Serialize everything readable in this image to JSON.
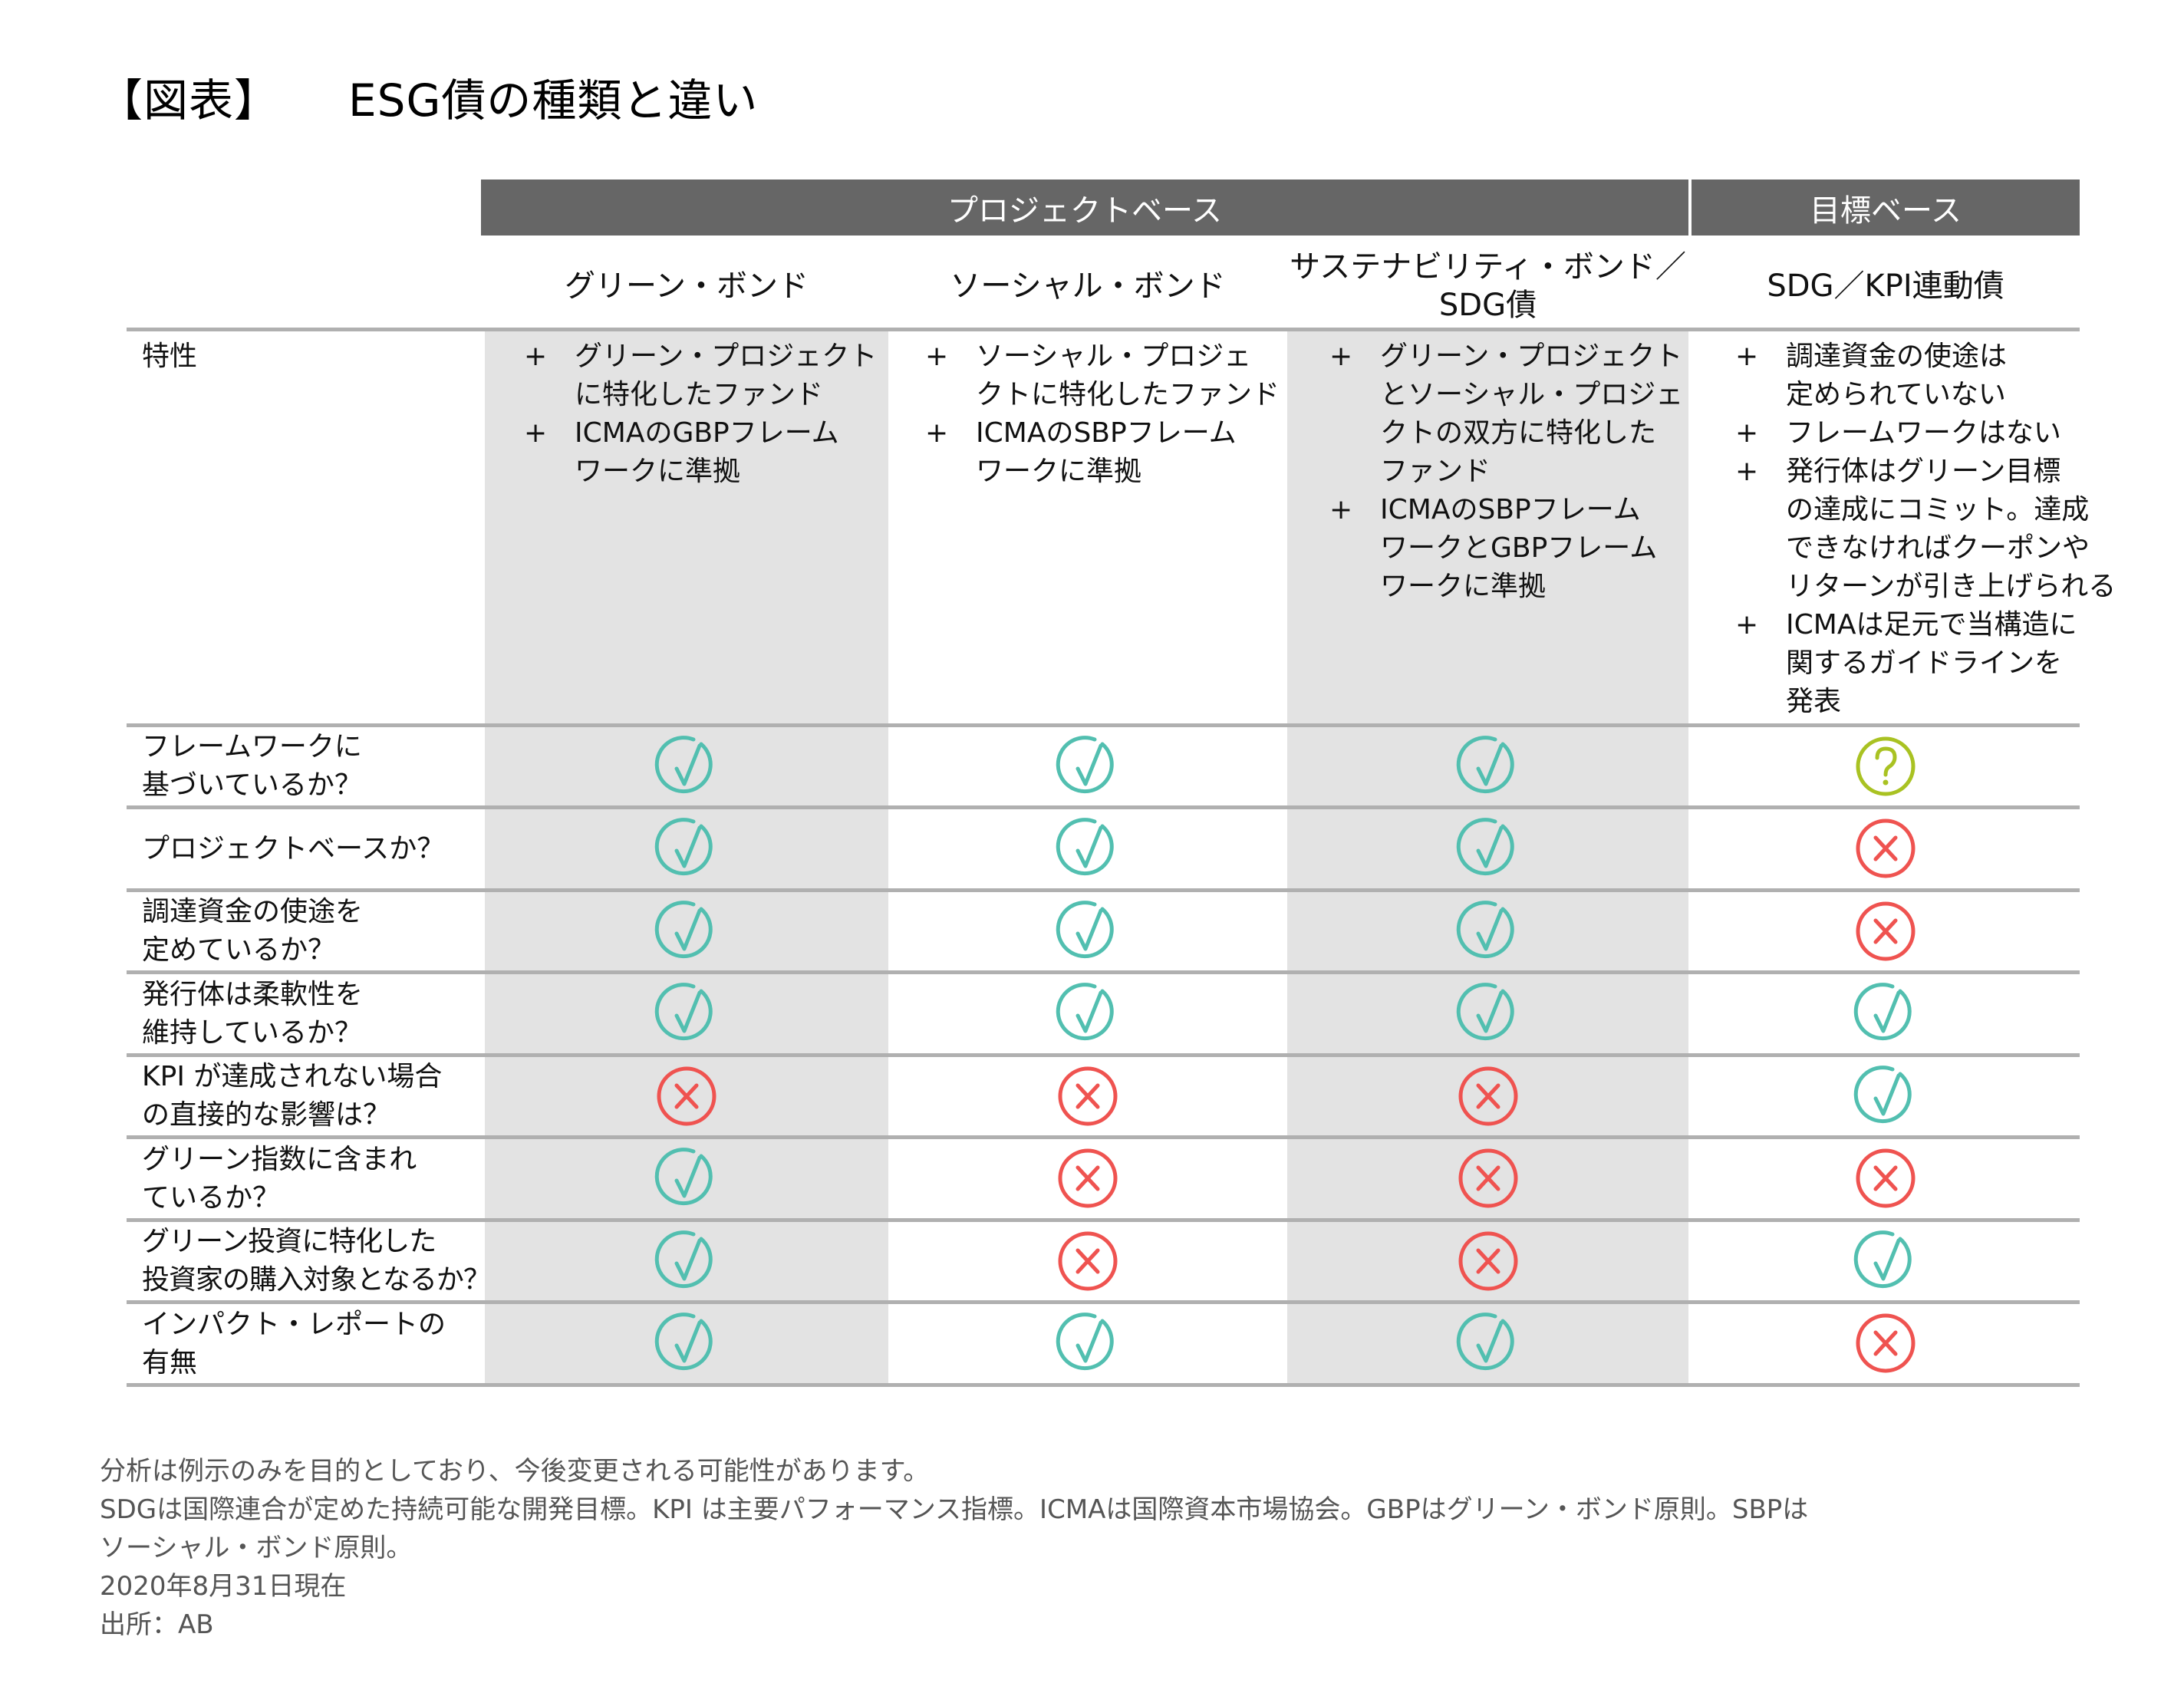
{
  "title": {
    "label": "【図表】",
    "text": "ESG債の種類と違い"
  },
  "colors": {
    "header_bg": "#666666",
    "shade_bg": "#e3e3e3",
    "rule": "#b0b0b0",
    "check": "#52bfb0",
    "cross": "#ef5350",
    "question": "#a9c222"
  },
  "groups": [
    {
      "label": "プロジェクトベース"
    },
    {
      "label": "目標ベース"
    }
  ],
  "columns": [
    {
      "label": "グリーン・ボンド"
    },
    {
      "label": "ソーシャル・ボンド"
    },
    {
      "label": "サステナビリティ・ボンド／\nSDG債"
    },
    {
      "label": "SDG／KPI連動債"
    }
  ],
  "characteristics": {
    "label": "特性",
    "cells": [
      [
        {
          "plus": "+",
          "text": "グリーン・プロジェクト\nに特化したファンド"
        },
        {
          "plus": "+",
          "text": "ICMAのGBPフレーム\nワークに準拠"
        }
      ],
      [
        {
          "plus": "+",
          "text": "ソーシャル・プロジェ\nクトに特化したファンド"
        },
        {
          "plus": "+",
          "text": "ICMAのSBPフレーム\nワークに準拠"
        }
      ],
      [
        {
          "plus": "+",
          "text": "グリーン・プロジェクト\nとソーシャル・プロジェ\nクトの双方に特化した\nファンド"
        },
        {
          "plus": "+",
          "text": "ICMAのSBPフレーム\nワークとGBPフレーム\nワークに準拠"
        }
      ],
      [
        {
          "plus": "+",
          "text": "調達資金の使途は\n定められていない"
        },
        {
          "plus": "+",
          "text": "フレームワークはない"
        },
        {
          "plus": "+",
          "text": "発行体はグリーン目標\nの達成にコミット。達成\nできなければクーポンや\nリターンが引き上げられる"
        },
        {
          "plus": "+",
          "text": "ICMAは足元で当構造に\n関するガイドラインを\n発表"
        }
      ]
    ]
  },
  "rows": [
    {
      "label": "フレームワークに\n基づいているか？",
      "values": [
        "check",
        "check",
        "check",
        "question"
      ]
    },
    {
      "label": "プロジェクトベースか？",
      "values": [
        "check",
        "check",
        "check",
        "cross"
      ]
    },
    {
      "label": "調達資金の使途を\n定めているか？",
      "values": [
        "check",
        "check",
        "check",
        "cross"
      ]
    },
    {
      "label": "発行体は柔軟性を\n維持しているか？",
      "values": [
        "check",
        "check",
        "check",
        "check"
      ]
    },
    {
      "label": "KPI が達成されない場合\nの直接的な影響は？",
      "values": [
        "cross",
        "cross",
        "cross",
        "check"
      ]
    },
    {
      "label": "グリーン指数に含まれ\nているか？",
      "values": [
        "check",
        "cross",
        "cross",
        "cross"
      ]
    },
    {
      "label": "グリーン投資に特化した\n投資家の購入対象となるか？",
      "values": [
        "check",
        "cross",
        "cross",
        "check"
      ]
    },
    {
      "label": "インパクト・レポートの\n有無",
      "values": [
        "check",
        "check",
        "check",
        "cross"
      ]
    }
  ],
  "notes": [
    "分析は例示のみを目的としており、今後変更される可能性があります。",
    "SDGは国際連合が定めた持続可能な開発目標。KPI は主要パフォーマンス指標。ICMAは国際資本市場協会。GBPはグリーン・ボンド原則。SBPは",
    "ソーシャル・ボンド原則。",
    "2020年8月31日現在",
    "出所：AB"
  ]
}
